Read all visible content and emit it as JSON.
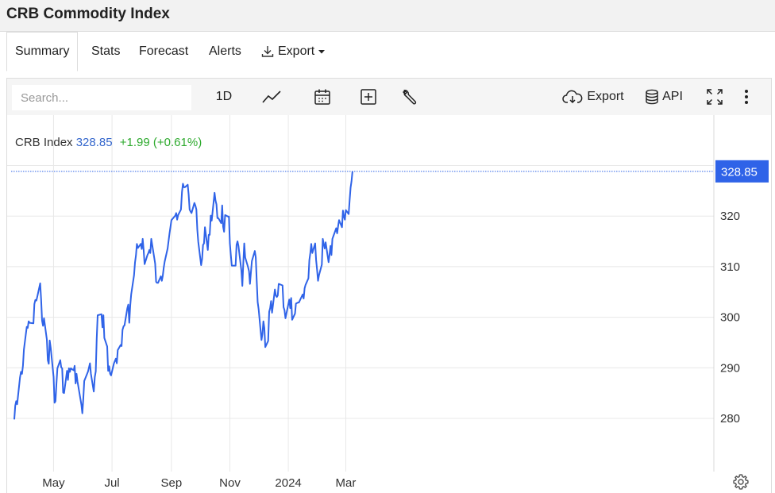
{
  "header": {
    "title": "CRB Commodity Index"
  },
  "tabs": [
    {
      "label": "Summary",
      "active": true
    },
    {
      "label": "Stats"
    },
    {
      "label": "Forecast"
    },
    {
      "label": "Alerts"
    },
    {
      "label": "Export",
      "icon": "download-icon",
      "has_dropdown": true
    }
  ],
  "toolbar": {
    "search_placeholder": "Search...",
    "interval_label": "1D",
    "icons": [
      "line-chart-icon",
      "calendar-icon",
      "add-box-icon",
      "wrench-icon",
      "cloud-download-icon",
      "database-icon",
      "fullscreen-icon",
      "more-vertical-icon"
    ],
    "export_label": "Export",
    "api_label": "API"
  },
  "legend": {
    "name": "CRB Index",
    "value": "328.85",
    "change": "+1.99 (+0.61%)"
  },
  "colors": {
    "line": "#2f63e8",
    "last_price_bg": "#2f63e8",
    "up": "#2eaa2e",
    "grid": "#e8e8e8"
  },
  "chart_data": {
    "type": "line",
    "x_tick_labels": [
      "May",
      "Jul",
      "Sep",
      "Nov",
      "2024",
      "Mar"
    ],
    "y_tick_labels": [
      "280",
      "290",
      "300",
      "310",
      "320"
    ],
    "ylim": [
      272,
      338
    ],
    "xlim": [
      "2023-03-21",
      "2024-03-22"
    ],
    "grid": true,
    "last_value_label": "328.85",
    "series": [
      {
        "name": "CRB Index",
        "points": [
          [
            "2023-03-21",
            279.8
          ],
          [
            "2023-03-22",
            282.5
          ],
          [
            "2023-03-23",
            283.4
          ],
          [
            "2023-03-24",
            282.8
          ],
          [
            "2023-03-27",
            288.1
          ],
          [
            "2023-03-28",
            289.2
          ],
          [
            "2023-03-29",
            288.8
          ],
          [
            "2023-03-30",
            290.4
          ],
          [
            "2023-03-31",
            293.6
          ],
          [
            "2023-04-03",
            298.1
          ],
          [
            "2023-04-04",
            297.9
          ],
          [
            "2023-04-05",
            299.2
          ],
          [
            "2023-04-06",
            298.9
          ],
          [
            "2023-04-10",
            298.8
          ],
          [
            "2023-04-11",
            302.6
          ],
          [
            "2023-04-12",
            303.4
          ],
          [
            "2023-04-13",
            303.3
          ],
          [
            "2023-04-14",
            304.1
          ],
          [
            "2023-04-17",
            306.7
          ],
          [
            "2023-04-18",
            303.5
          ],
          [
            "2023-04-19",
            299.3
          ],
          [
            "2023-04-20",
            298.3
          ],
          [
            "2023-04-21",
            299.8
          ],
          [
            "2023-04-24",
            295.6
          ],
          [
            "2023-04-25",
            291.5
          ],
          [
            "2023-04-26",
            290.8
          ],
          [
            "2023-04-27",
            295.4
          ],
          [
            "2023-04-28",
            293.9
          ],
          [
            "2023-05-01",
            288.2
          ],
          [
            "2023-05-02",
            283.1
          ],
          [
            "2023-05-03",
            283.4
          ],
          [
            "2023-05-04",
            286.9
          ],
          [
            "2023-05-05",
            289.9
          ],
          [
            "2023-05-08",
            291.5
          ],
          [
            "2023-05-09",
            290.1
          ],
          [
            "2023-05-10",
            289.9
          ],
          [
            "2023-05-11",
            285.1
          ],
          [
            "2023-05-12",
            285.0
          ],
          [
            "2023-05-15",
            289.4
          ],
          [
            "2023-05-16",
            287.6
          ],
          [
            "2023-05-17",
            289.9
          ],
          [
            "2023-05-18",
            289.2
          ],
          [
            "2023-05-19",
            289.9
          ],
          [
            "2023-05-22",
            289.5
          ],
          [
            "2023-05-23",
            290.4
          ],
          [
            "2023-05-24",
            286.9
          ],
          [
            "2023-05-25",
            288.8
          ],
          [
            "2023-05-26",
            287.3
          ],
          [
            "2023-05-30",
            282.7
          ],
          [
            "2023-05-31",
            281.0
          ],
          [
            "2023-06-01",
            283.9
          ],
          [
            "2023-06-02",
            287.4
          ],
          [
            "2023-06-05",
            288.8
          ],
          [
            "2023-06-06",
            289.3
          ],
          [
            "2023-06-07",
            290.1
          ],
          [
            "2023-06-08",
            290.9
          ],
          [
            "2023-06-09",
            288.8
          ],
          [
            "2023-06-12",
            285.3
          ],
          [
            "2023-06-13",
            288.2
          ],
          [
            "2023-06-14",
            289.3
          ],
          [
            "2023-06-15",
            295.8
          ],
          [
            "2023-06-16",
            300.4
          ],
          [
            "2023-06-20",
            300.6
          ],
          [
            "2023-06-21",
            298.0
          ],
          [
            "2023-06-22",
            300.4
          ],
          [
            "2023-06-23",
            295.9
          ],
          [
            "2023-06-26",
            294.2
          ],
          [
            "2023-06-27",
            289.4
          ],
          [
            "2023-06-28",
            290.3
          ],
          [
            "2023-06-29",
            288.8
          ],
          [
            "2023-06-30",
            288.5
          ],
          [
            "2023-07-03",
            290.9
          ],
          [
            "2023-07-05",
            291.8
          ],
          [
            "2023-07-06",
            290.9
          ],
          [
            "2023-07-07",
            293.5
          ],
          [
            "2023-07-10",
            294.5
          ],
          [
            "2023-07-11",
            294.3
          ],
          [
            "2023-07-12",
            297.5
          ],
          [
            "2023-07-13",
            298.2
          ],
          [
            "2023-07-14",
            298.4
          ],
          [
            "2023-07-17",
            301.8
          ],
          [
            "2023-07-18",
            302.5
          ],
          [
            "2023-07-19",
            298.9
          ],
          [
            "2023-07-20",
            302.3
          ],
          [
            "2023-07-21",
            304.5
          ],
          [
            "2023-07-24",
            308.3
          ],
          [
            "2023-07-25",
            310.8
          ],
          [
            "2023-07-26",
            312.2
          ],
          [
            "2023-07-27",
            314.5
          ],
          [
            "2023-07-28",
            313.7
          ],
          [
            "2023-07-31",
            314.5
          ],
          [
            "2023-08-01",
            313.5
          ],
          [
            "2023-08-02",
            315.5
          ],
          [
            "2023-08-03",
            313.3
          ],
          [
            "2023-08-04",
            310.5
          ],
          [
            "2023-08-07",
            312.3
          ],
          [
            "2023-08-08",
            312.7
          ],
          [
            "2023-08-09",
            313.3
          ],
          [
            "2023-08-10",
            312.7
          ],
          [
            "2023-08-11",
            315.5
          ],
          [
            "2023-08-14",
            311.8
          ],
          [
            "2023-08-15",
            310.6
          ],
          [
            "2023-08-16",
            307.0
          ],
          [
            "2023-08-17",
            306.8
          ],
          [
            "2023-08-18",
            306.8
          ],
          [
            "2023-08-21",
            308.1
          ],
          [
            "2023-08-22",
            307.2
          ],
          [
            "2023-08-23",
            308.2
          ],
          [
            "2023-08-24",
            309.8
          ],
          [
            "2023-08-25",
            311.0
          ],
          [
            "2023-08-28",
            313.6
          ],
          [
            "2023-08-29",
            315.1
          ],
          [
            "2023-08-30",
            316.6
          ],
          [
            "2023-08-31",
            317.9
          ],
          [
            "2023-09-01",
            319.2
          ],
          [
            "2023-09-05",
            320.1
          ],
          [
            "2023-09-06",
            320.6
          ],
          [
            "2023-09-07",
            319.3
          ],
          [
            "2023-09-08",
            320.2
          ],
          [
            "2023-09-11",
            321.3
          ],
          [
            "2023-09-12",
            324.8
          ],
          [
            "2023-09-13",
            326.4
          ],
          [
            "2023-09-14",
            325.7
          ],
          [
            "2023-09-15",
            325.7
          ],
          [
            "2023-09-18",
            326.2
          ],
          [
            "2023-09-19",
            324.2
          ],
          [
            "2023-09-20",
            321.3
          ],
          [
            "2023-09-21",
            320.9
          ],
          [
            "2023-09-22",
            320.6
          ],
          [
            "2023-09-25",
            322.6
          ],
          [
            "2023-09-26",
            322.1
          ],
          [
            "2023-09-27",
            321.3
          ],
          [
            "2023-09-28",
            317.3
          ],
          [
            "2023-09-29",
            314.9
          ],
          [
            "2023-10-02",
            310.3
          ],
          [
            "2023-10-03",
            311.5
          ],
          [
            "2023-10-04",
            314.3
          ],
          [
            "2023-10-05",
            314.6
          ],
          [
            "2023-10-06",
            317.8
          ],
          [
            "2023-10-09",
            313.3
          ],
          [
            "2023-10-10",
            316.3
          ],
          [
            "2023-10-11",
            316.3
          ],
          [
            "2023-10-12",
            320.1
          ],
          [
            "2023-10-13",
            319.1
          ],
          [
            "2023-10-16",
            324.6
          ],
          [
            "2023-10-17",
            323.1
          ],
          [
            "2023-10-18",
            322.3
          ],
          [
            "2023-10-19",
            319.6
          ],
          [
            "2023-10-20",
            319.6
          ],
          [
            "2023-10-23",
            318.6
          ],
          [
            "2023-10-24",
            322.1
          ],
          [
            "2023-10-25",
            317.9
          ],
          [
            "2023-10-26",
            316.9
          ],
          [
            "2023-10-27",
            320.2
          ],
          [
            "2023-10-30",
            319.9
          ],
          [
            "2023-10-31",
            319.9
          ],
          [
            "2023-11-01",
            314.6
          ],
          [
            "2023-11-02",
            312.3
          ],
          [
            "2023-11-03",
            310.2
          ],
          [
            "2023-11-06",
            310.2
          ],
          [
            "2023-11-07",
            310.2
          ],
          [
            "2023-11-08",
            314.3
          ],
          [
            "2023-11-09",
            315.0
          ],
          [
            "2023-11-10",
            314.1
          ],
          [
            "2023-11-13",
            309.2
          ],
          [
            "2023-11-14",
            306.2
          ],
          [
            "2023-11-15",
            310.7
          ],
          [
            "2023-11-16",
            314.6
          ],
          [
            "2023-11-17",
            311.8
          ],
          [
            "2023-11-20",
            309.9
          ],
          [
            "2023-11-21",
            309.1
          ],
          [
            "2023-11-22",
            306.6
          ],
          [
            "2023-11-24",
            311.1
          ],
          [
            "2023-11-27",
            313.1
          ],
          [
            "2023-11-28",
            311.8
          ],
          [
            "2023-11-29",
            307.2
          ],
          [
            "2023-11-30",
            303.0
          ],
          [
            "2023-12-01",
            301.6
          ],
          [
            "2023-12-04",
            295.5
          ],
          [
            "2023-12-05",
            296.7
          ],
          [
            "2023-12-06",
            299.2
          ],
          [
            "2023-12-07",
            297.9
          ],
          [
            "2023-12-08",
            294.1
          ],
          [
            "2023-12-11",
            295.3
          ],
          [
            "2023-12-12",
            301.1
          ],
          [
            "2023-12-13",
            301.8
          ],
          [
            "2023-12-14",
            303.2
          ],
          [
            "2023-12-15",
            300.9
          ],
          [
            "2023-12-18",
            305.5
          ],
          [
            "2023-12-19",
            304.3
          ],
          [
            "2023-12-20",
            304.0
          ],
          [
            "2023-12-21",
            304.3
          ],
          [
            "2023-12-22",
            306.6
          ],
          [
            "2023-12-26",
            306.3
          ],
          [
            "2023-12-27",
            302.0
          ],
          [
            "2023-12-28",
            301.4
          ],
          [
            "2023-12-29",
            299.8
          ],
          [
            "2024-01-02",
            303.5
          ],
          [
            "2024-01-03",
            301.8
          ],
          [
            "2024-01-04",
            303.8
          ],
          [
            "2024-01-05",
            299.5
          ],
          [
            "2024-01-08",
            300.7
          ],
          [
            "2024-01-09",
            302.7
          ],
          [
            "2024-01-10",
            302.8
          ],
          [
            "2024-01-11",
            302.9
          ],
          [
            "2024-01-12",
            302.9
          ],
          [
            "2024-01-16",
            304.5
          ],
          [
            "2024-01-17",
            303.7
          ],
          [
            "2024-01-18",
            305.7
          ],
          [
            "2024-01-19",
            306.4
          ],
          [
            "2024-01-22",
            307.7
          ],
          [
            "2024-01-23",
            311.3
          ],
          [
            "2024-01-24",
            312.7
          ],
          [
            "2024-01-25",
            314.5
          ],
          [
            "2024-01-26",
            312.7
          ],
          [
            "2024-01-29",
            314.6
          ],
          [
            "2024-01-30",
            311.3
          ],
          [
            "2024-01-31",
            309.4
          ],
          [
            "2024-02-01",
            307.2
          ],
          [
            "2024-02-02",
            308.3
          ],
          [
            "2024-02-05",
            310.4
          ],
          [
            "2024-02-06",
            315.5
          ],
          [
            "2024-02-07",
            314.5
          ],
          [
            "2024-02-08",
            313.6
          ],
          [
            "2024-02-09",
            314.8
          ],
          [
            "2024-02-12",
            310.9
          ],
          [
            "2024-02-13",
            312.4
          ],
          [
            "2024-02-14",
            314.1
          ],
          [
            "2024-02-15",
            312.3
          ],
          [
            "2024-02-16",
            315.5
          ],
          [
            "2024-02-20",
            317.6
          ],
          [
            "2024-02-21",
            316.6
          ],
          [
            "2024-02-22",
            318.0
          ],
          [
            "2024-02-23",
            319.2
          ],
          [
            "2024-02-26",
            317.8
          ],
          [
            "2024-02-27",
            321.1
          ],
          [
            "2024-02-28",
            319.9
          ],
          [
            "2024-02-29",
            319.3
          ],
          [
            "2024-03-01",
            321.2
          ],
          [
            "2024-03-04",
            320.4
          ],
          [
            "2024-03-05",
            323.1
          ],
          [
            "2024-03-06",
            325.6
          ],
          [
            "2024-03-07",
            326.9
          ],
          [
            "2024-03-08",
            328.85
          ]
        ]
      }
    ]
  }
}
